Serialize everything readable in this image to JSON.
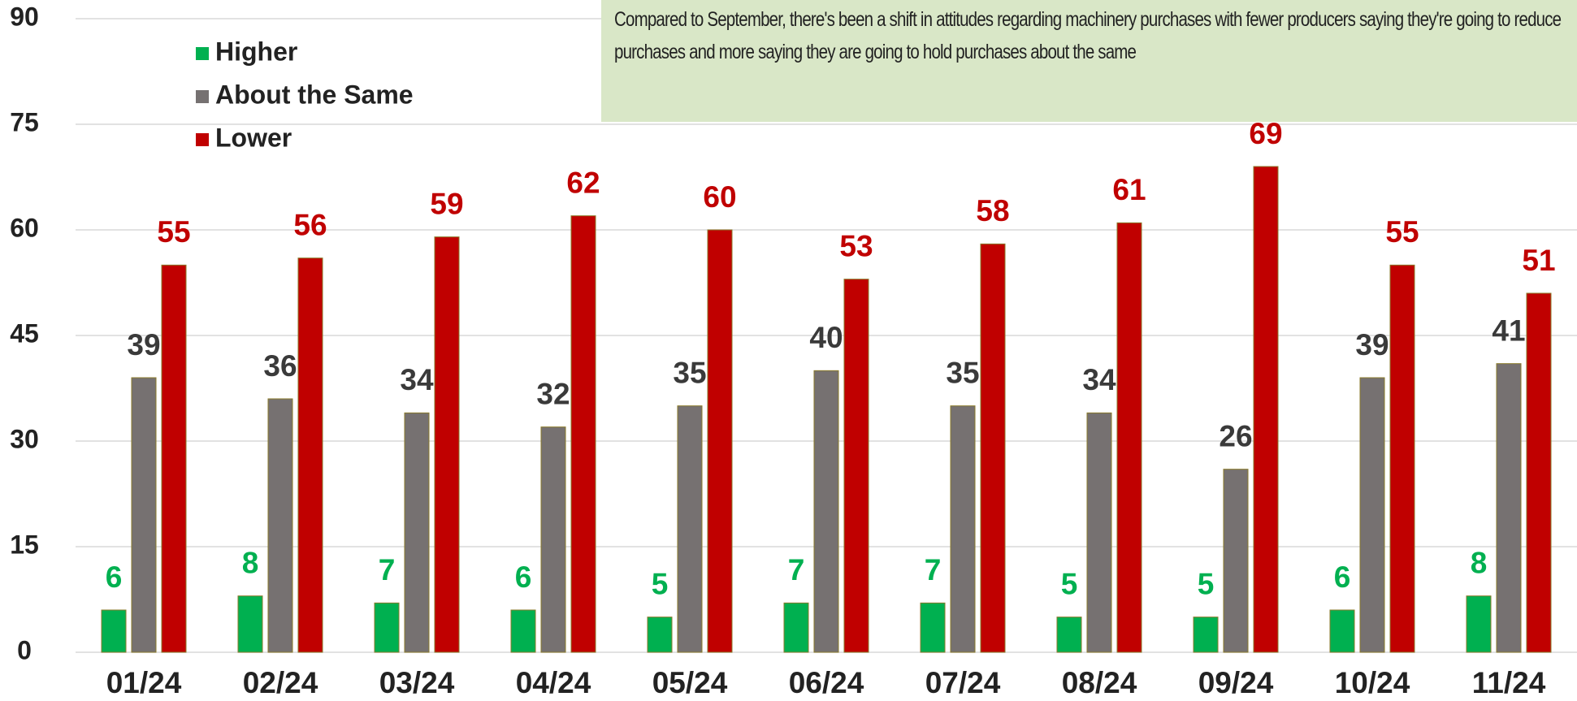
{
  "chart_data": {
    "type": "bar",
    "annotation": "Compared to September, there's been a shift in attitudes regarding machinery purchases with fewer producers saying they're going to reduce purchases and more saying they are going to hold purchases about the same",
    "categories": [
      "01/24",
      "02/24",
      "03/24",
      "04/24",
      "05/24",
      "06/24",
      "07/24",
      "08/24",
      "09/24",
      "10/24",
      "11/24"
    ],
    "series": [
      {
        "name": "Higher",
        "color": "#00b050",
        "values": [
          6,
          8,
          7,
          6,
          5,
          7,
          7,
          5,
          5,
          6,
          8
        ]
      },
      {
        "name": "About the Same",
        "color": "#767171",
        "values": [
          39,
          36,
          34,
          32,
          35,
          40,
          35,
          34,
          26,
          39,
          41
        ]
      },
      {
        "name": "Lower",
        "color": "#c00000",
        "values": [
          55,
          56,
          59,
          62,
          60,
          53,
          58,
          61,
          69,
          55,
          51
        ]
      }
    ],
    "ylim": [
      0,
      90
    ],
    "yticks": [
      0,
      15,
      30,
      45,
      60,
      75,
      90
    ],
    "grid": true
  }
}
